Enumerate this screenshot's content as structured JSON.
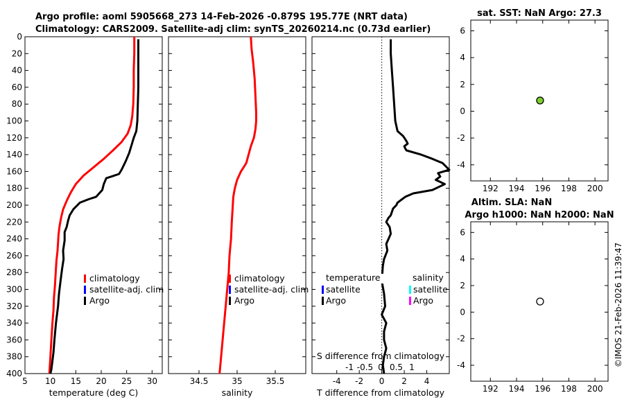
{
  "title_line1": "Argo profile: aoml 5905668_273 14-Feb-2026 -0.879S 195.77E (NRT data)",
  "title_line2": "Climatology: CARS2009. Satellite-adj clim: synTS_20260214.nc (0.73d earlier)",
  "sst_title": "sat. SST: NaN Argo: 27.3",
  "sla_title1": "Altim. SLA: NaN",
  "sla_title2": "Argo h1000: NaN h2000: NaN",
  "watermark": "©IMOS 21-Feb-2026 11:39:47",
  "colors": {
    "climatology": "#ff0000",
    "satellite": "#0000ff",
    "argo": "#000000",
    "sal_satellite": "#00ffff",
    "sal_argo": "#ff00ff",
    "sst_marker": "#7ccf2e"
  },
  "chart_data": [
    {
      "type": "line",
      "name": "temperature",
      "xlabel": "temperature (deg C)",
      "xlim": [
        5,
        32
      ],
      "ylim": [
        0,
        400
      ],
      "y_reversed": true,
      "xticks": [
        5,
        10,
        15,
        20,
        25,
        30
      ],
      "yticks": [
        0,
        20,
        40,
        60,
        80,
        100,
        120,
        140,
        160,
        180,
        200,
        220,
        240,
        260,
        280,
        300,
        320,
        340,
        360,
        380,
        400
      ],
      "legend": [
        "climatology",
        "satellite-adj. clim",
        "Argo"
      ],
      "series": [
        {
          "name": "climatology",
          "x": [
            26.5,
            26.5,
            26.4,
            26.4,
            26.3,
            26.1,
            25.8,
            25.2,
            24.0,
            22.3,
            20.5,
            18.5,
            16.5,
            15.0,
            14.0,
            13.2,
            12.5,
            12.1,
            11.8,
            11.6,
            11.5,
            11.4,
            11.2,
            11.1,
            11.0,
            10.9,
            10.7,
            10.6,
            10.4,
            10.2,
            10.0,
            9.8
          ],
          "y": [
            0,
            20,
            40,
            60,
            80,
            95,
            105,
            115,
            125,
            135,
            145,
            155,
            165,
            175,
            185,
            195,
            205,
            215,
            225,
            235,
            245,
            255,
            265,
            275,
            285,
            295,
            310,
            325,
            340,
            360,
            380,
            400
          ]
        },
        {
          "name": "Argo",
          "x": [
            27.3,
            27.3,
            27.3,
            27.3,
            27.2,
            27.1,
            26.9,
            26.4,
            26.0,
            25.5,
            24.8,
            24.0,
            23.5,
            22.0,
            21.0,
            20.5,
            20.2,
            19.0,
            17.5,
            15.8,
            14.5,
            13.8,
            13.5,
            13.2,
            12.8,
            12.8,
            12.5,
            12.6,
            12.3,
            12.0,
            11.7,
            11.5,
            11.1,
            10.8,
            10.6,
            10.4,
            10.2,
            10.0
          ],
          "y": [
            3,
            20,
            40,
            60,
            80,
            100,
            112,
            120,
            128,
            138,
            148,
            158,
            163,
            166,
            168,
            175,
            182,
            190,
            193,
            197,
            205,
            212,
            218,
            226,
            232,
            242,
            254,
            264,
            276,
            290,
            305,
            320,
            340,
            360,
            375,
            385,
            395,
            400
          ]
        }
      ]
    },
    {
      "type": "line",
      "name": "salinity",
      "xlabel": "salinity",
      "xlim": [
        34.1,
        35.9
      ],
      "ylim": [
        0,
        400
      ],
      "y_reversed": true,
      "xticks": [
        34.5,
        35,
        35.5
      ],
      "legend": [
        "climatology",
        "satellite-adj. clim",
        "Argo"
      ],
      "series": [
        {
          "name": "climatology",
          "x": [
            35.18,
            35.19,
            35.21,
            35.23,
            35.24,
            35.25,
            35.25,
            35.24,
            35.22,
            35.18,
            35.12,
            35.05,
            35.0,
            34.97,
            34.95,
            34.94,
            34.93,
            34.92,
            34.9,
            34.89,
            34.87,
            34.85,
            34.82,
            34.79,
            34.77
          ],
          "y": [
            0,
            15,
            30,
            50,
            70,
            90,
            100,
            110,
            120,
            130,
            150,
            160,
            170,
            180,
            190,
            205,
            220,
            240,
            260,
            280,
            300,
            320,
            350,
            380,
            400
          ]
        }
      ]
    },
    {
      "type": "line",
      "name": "T difference from climatology",
      "xlabel": "T difference from climatology",
      "xlabel_top": "S difference from climatology",
      "xlim": [
        -6.2,
        6
      ],
      "xlim_top": [
        -2.2,
        2.2
      ],
      "ylim": [
        0,
        400
      ],
      "y_reversed": true,
      "xticks": [
        -4,
        -2,
        0,
        2,
        4
      ],
      "xticks_top": [
        -1,
        -0.5,
        0,
        0.5,
        1
      ],
      "legend": [
        "temperature",
        "satellite",
        "Argo",
        "salinity",
        "satellite",
        "Argo"
      ],
      "series": [
        {
          "name": "Argo temperature diff",
          "x": [
            0.8,
            0.8,
            0.9,
            1.0,
            1.1,
            1.2,
            1.4,
            1.9,
            2.0,
            2.2,
            2.3,
            2.0,
            2.1,
            2.2,
            3.5,
            4.5,
            5.4,
            6.0,
            5.0,
            5.2,
            4.8,
            5.6,
            4.5,
            2.8,
            2.1,
            1.8,
            1.4,
            1.3,
            1.0,
            0.8,
            0.6,
            0.4,
            0.7,
            0.8,
            0.6,
            0.4,
            0.5,
            0.2,
            0.1,
            0.0,
            0.2,
            0.3,
            0.0,
            0.4,
            0.2,
            0.2,
            0.4,
            0.2,
            0.1,
            0.2
          ],
          "y": [
            3,
            20,
            40,
            60,
            80,
            100,
            112,
            118,
            120,
            124,
            127,
            130,
            133,
            135,
            140,
            145,
            150,
            158,
            162,
            166,
            170,
            175,
            182,
            186,
            190,
            193,
            197,
            200,
            204,
            212,
            215,
            220,
            226,
            234,
            240,
            246,
            254,
            264,
            272,
            290,
            305,
            320,
            330,
            340,
            350,
            360,
            370,
            380,
            390,
            400
          ]
        }
      ]
    },
    {
      "type": "scatter",
      "name": "sat. SST vs Argo",
      "xlim": [
        190.5,
        201
      ],
      "ylim": [
        -5.2,
        6.8
      ],
      "xticks": [
        192,
        194,
        196,
        198,
        200
      ],
      "yticks": [
        -4,
        -2,
        0,
        2,
        4,
        6
      ],
      "points": [
        {
          "x": 195.8,
          "y": 0.8
        }
      ]
    },
    {
      "type": "scatter",
      "name": "Altim. SLA",
      "xlim": [
        190.5,
        201
      ],
      "ylim": [
        -5.2,
        6.8
      ],
      "xticks": [
        192,
        194,
        196,
        198,
        200
      ],
      "yticks": [
        -4,
        -2,
        0,
        2,
        4,
        6
      ],
      "points": [
        {
          "x": 195.8,
          "y": 0.8
        }
      ]
    }
  ]
}
